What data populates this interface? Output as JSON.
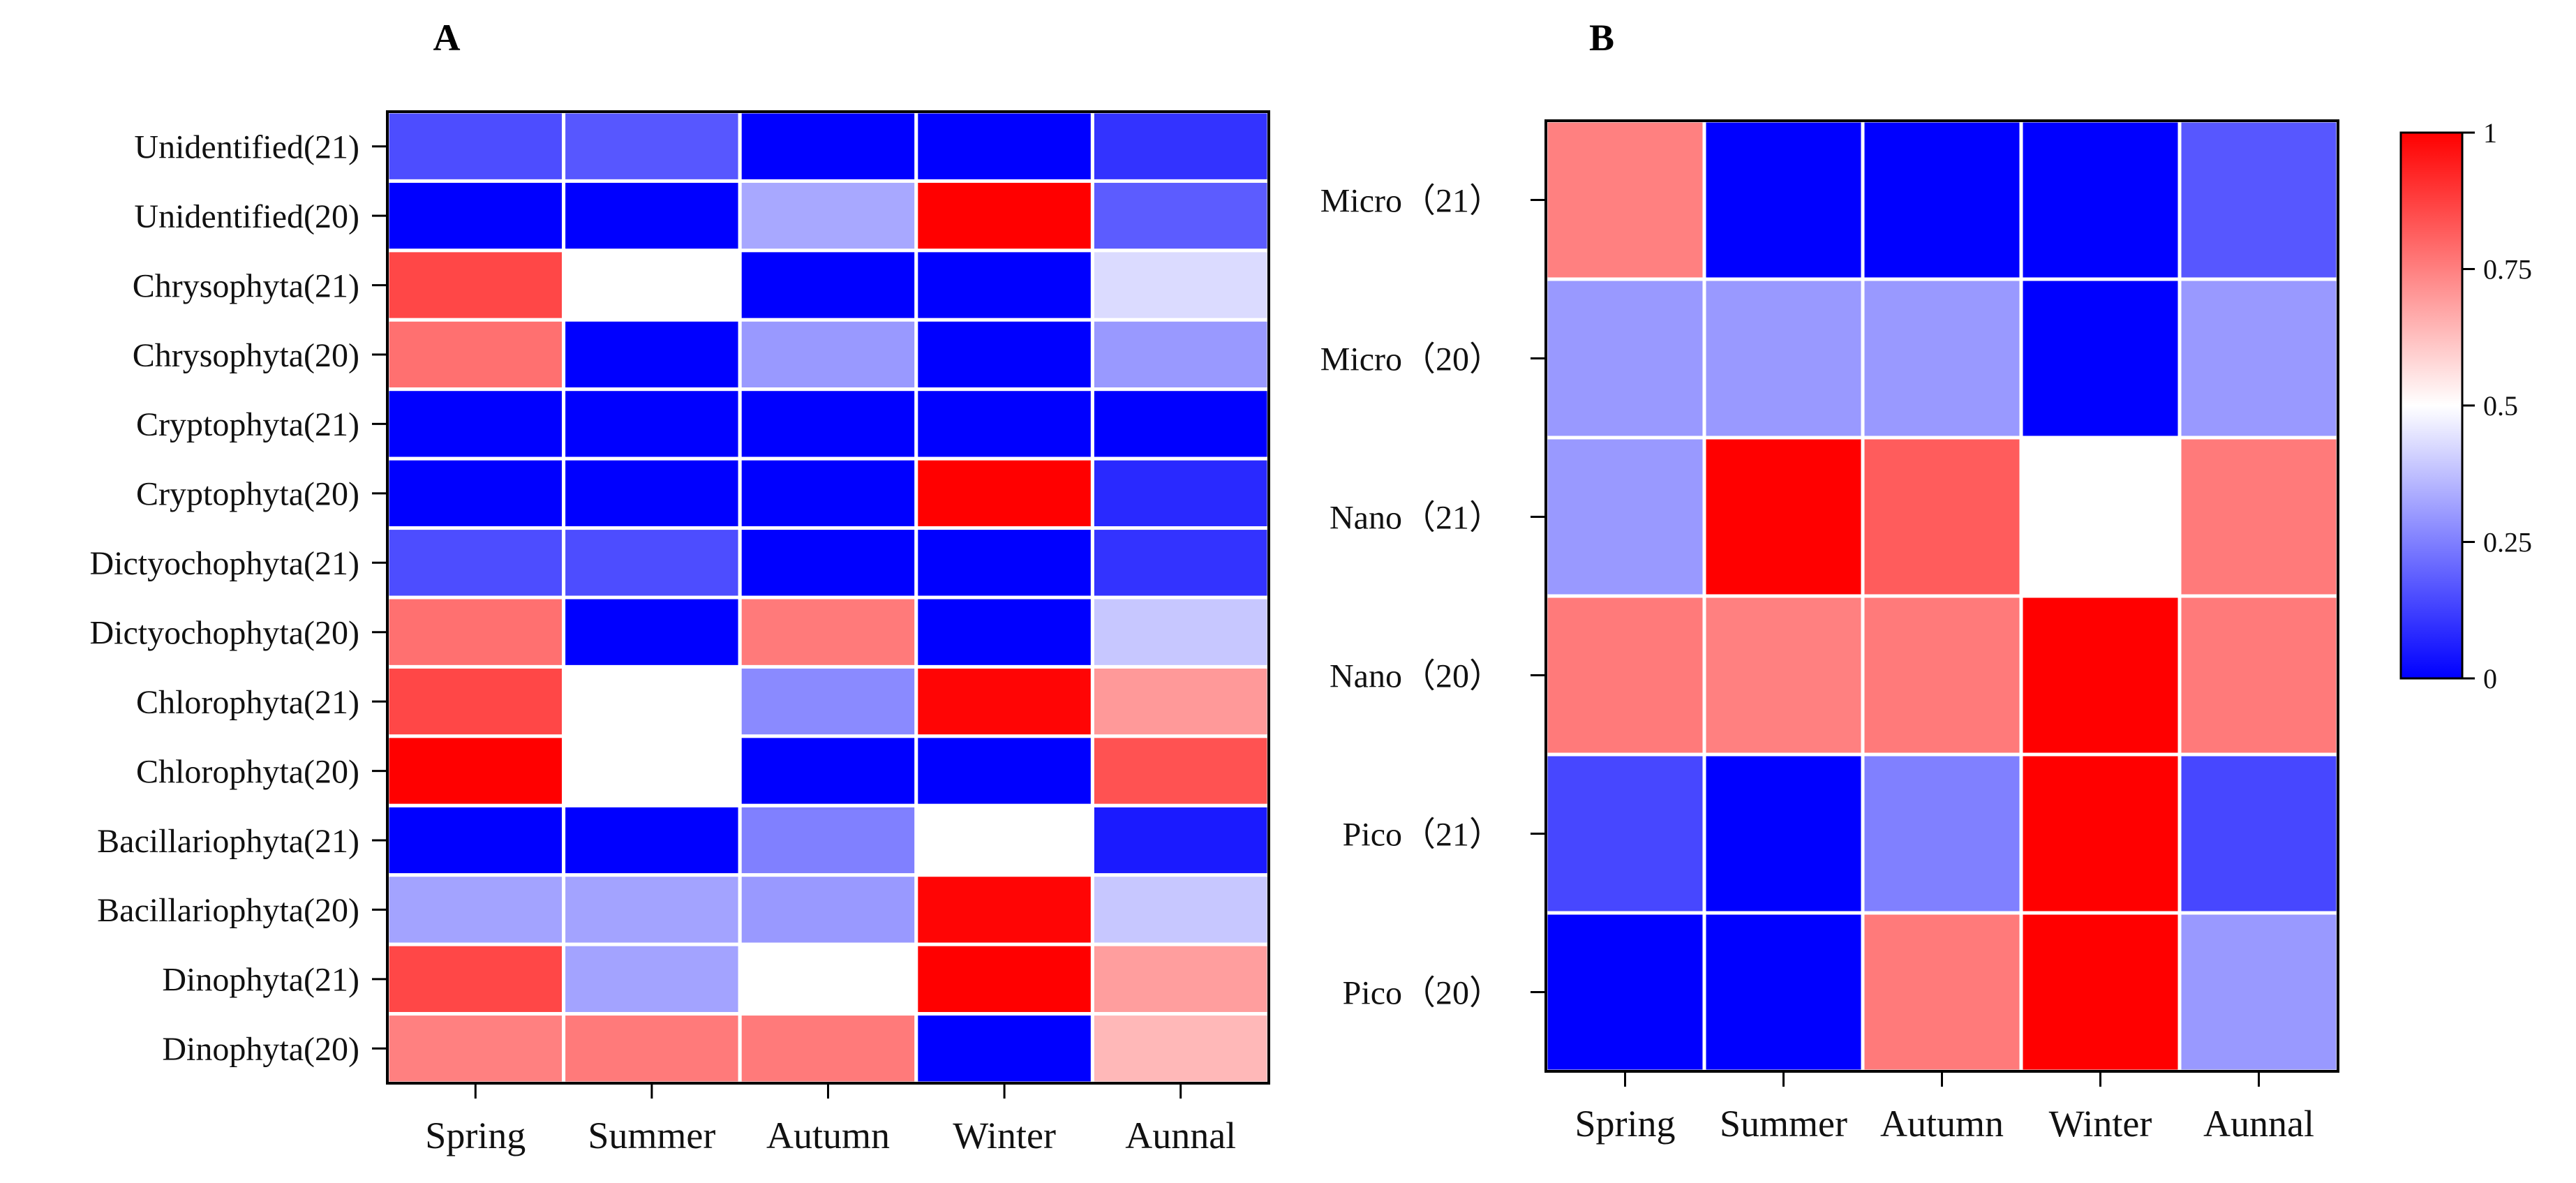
{
  "chart_data": [
    {
      "type": "heatmap",
      "panel": "A",
      "title": "A",
      "columns": [
        "Spring",
        "Summer",
        "Autumn",
        "Winter",
        "Aunnal"
      ],
      "rows": [
        "Unidentified(21)",
        "Unidentified(20)",
        "Chrysophyta(21)",
        "Chrysophyta(20)",
        "Cryptophyta(21)",
        "Cryptophyta(20)",
        "Dictyochophyta(21)",
        "Dictyochophyta(20)",
        "Chlorophyta(21)",
        "Chlorophyta(20)",
        "Bacillariophyta(21)",
        "Bacillariophyta(20)",
        "Dinophyta(21)",
        "Dinophyta(20)"
      ],
      "values": [
        [
          0.15,
          0.17,
          0.0,
          0.0,
          0.1
        ],
        [
          0.0,
          0.0,
          0.33,
          1.0,
          0.18
        ],
        [
          0.86,
          0.5,
          0.0,
          0.0,
          0.43
        ],
        [
          0.78,
          0.0,
          0.3,
          0.0,
          0.3
        ],
        [
          0.0,
          0.0,
          0.0,
          0.0,
          0.0
        ],
        [
          0.0,
          0.0,
          0.0,
          1.0,
          0.08
        ],
        [
          0.15,
          0.15,
          0.0,
          0.0,
          0.1
        ],
        [
          0.78,
          0.0,
          0.76,
          0.0,
          0.39
        ],
        [
          0.86,
          0.5,
          0.27,
          0.99,
          0.7
        ],
        [
          1.0,
          0.5,
          0.0,
          0.0,
          0.84
        ],
        [
          0.0,
          0.0,
          0.25,
          0.5,
          0.05
        ],
        [
          0.32,
          0.32,
          0.3,
          0.99,
          0.39
        ],
        [
          0.86,
          0.32,
          0.5,
          1.0,
          0.69
        ],
        [
          0.75,
          0.76,
          0.76,
          0.0,
          0.64
        ]
      ]
    },
    {
      "type": "heatmap",
      "panel": "B",
      "title": "B",
      "columns": [
        "Spring",
        "Summer",
        "Autumn",
        "Winter",
        "Aunnal"
      ],
      "rows": [
        "Micro（21）",
        "Micro（20）",
        "Nano（21）",
        "Nano（20）",
        "Pico（21）",
        "Pico（20）"
      ],
      "values": [
        [
          0.75,
          0.0,
          0.0,
          0.0,
          0.17
        ],
        [
          0.3,
          0.3,
          0.3,
          0.0,
          0.3
        ],
        [
          0.3,
          1.0,
          0.82,
          0.5,
          0.76
        ],
        [
          0.76,
          0.75,
          0.76,
          1.0,
          0.76
        ],
        [
          0.14,
          0.0,
          0.25,
          1.0,
          0.14
        ],
        [
          0.0,
          0.0,
          0.76,
          1.0,
          0.3
        ]
      ]
    }
  ],
  "colorbar": {
    "min": 0,
    "max": 1,
    "ticks": [
      "0",
      "0.25",
      "0.5",
      "0.75",
      "1"
    ],
    "colors": {
      "low": "#0000ff",
      "mid": "#ffffff",
      "high": "#ff0000"
    }
  }
}
